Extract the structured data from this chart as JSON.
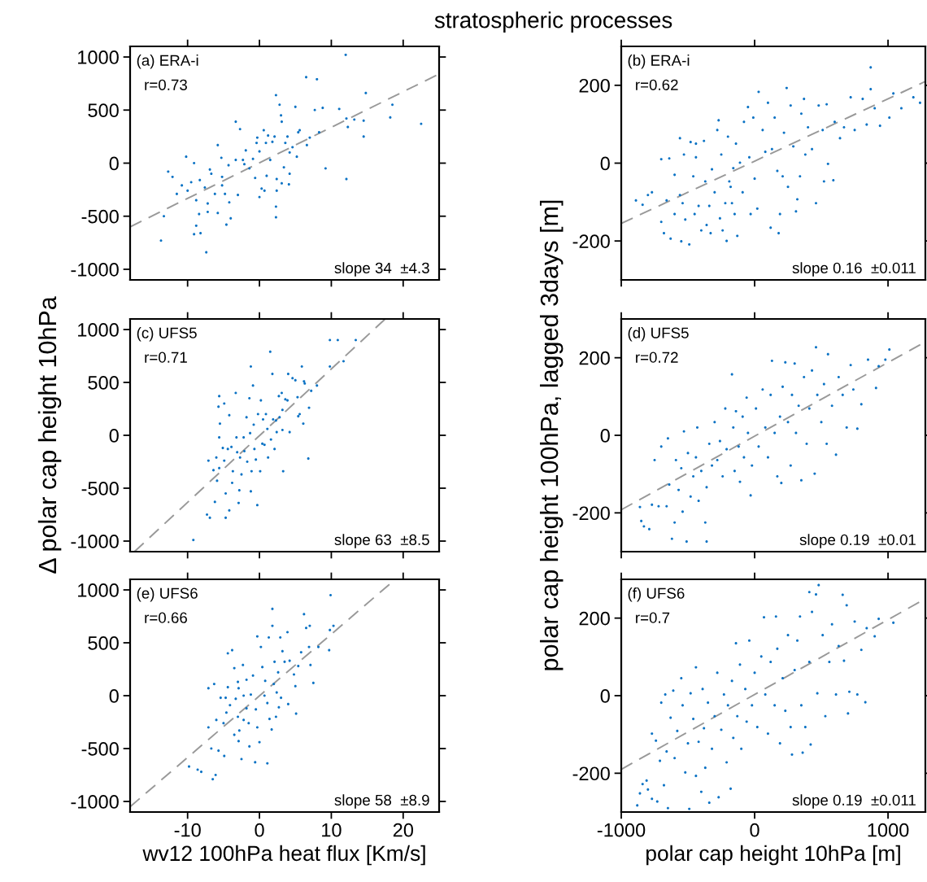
{
  "chart_data": [
    {
      "type": "scatter",
      "title": "stratospheric processes",
      "xlim": [
        -18,
        25
      ],
      "ylim": [
        -1100,
        1100
      ],
      "xticks": [
        -10,
        0,
        10,
        20
      ],
      "yticks": [
        -1000,
        -500,
        0,
        500,
        1000
      ],
      "tick_labels": "y",
      "annotations": [
        "(a) ERA-i",
        "r=0.73",
        "slope 34  ±4.3"
      ],
      "series": [
        {
          "type": "scatter",
          "color": "#0a72c4",
          "marker": "circle",
          "x": [
            -13.7,
            -13.3,
            -12.7,
            -12.1,
            -11.5,
            -10.8,
            -10.2,
            -10.0,
            -9.5,
            -9.1,
            -9.1,
            -8.8,
            -8.8,
            -8.4,
            -8.3,
            -8.2,
            -7.6,
            -7.4,
            -7.2,
            -7.2,
            -6.9,
            -6.7,
            -6.2,
            -5.8,
            -5.8,
            -5.3,
            -5.2,
            -5.2,
            -4.8,
            -4.6,
            -4.3,
            -4.2,
            -4.0,
            -3.3,
            -3.3,
            -3.0,
            -2.7,
            -2.3,
            -2.1,
            -1.9,
            -1.4,
            -0.9,
            -0.6,
            -0.4,
            -0.3,
            0.0,
            0.0,
            0.3,
            0.6,
            0.7,
            0.9,
            1.0,
            1.2,
            1.5,
            1.8,
            2.1,
            2.3,
            2.4,
            2.3,
            2.3,
            2.4,
            2.8,
            3.0,
            3.1,
            3.1,
            3.4,
            3.6,
            3.9,
            4.1,
            4.2,
            4.2,
            4.6,
            5.0,
            5.2,
            5.4,
            5.6,
            6.5,
            6.6,
            7.0,
            7.7,
            8.0,
            8.3,
            8.8,
            9.2,
            11.1,
            12.0,
            12.1,
            12.1,
            12.3,
            13.2,
            14.5,
            14.5,
            14.8,
            18.2,
            18.5,
            22.5
          ],
          "values": [
            -730,
            -500,
            -80,
            -130,
            -290,
            -210,
            60,
            -260,
            -180,
            0,
            -670,
            -350,
            -590,
            -480,
            -160,
            -660,
            -230,
            -840,
            -380,
            -460,
            -60,
            -100,
            -290,
            170,
            -470,
            50,
            -130,
            -210,
            -290,
            -580,
            -20,
            -370,
            -520,
            390,
            30,
            -300,
            320,
            30,
            -10,
            120,
            -50,
            40,
            -140,
            190,
            240,
            -320,
            110,
            -240,
            310,
            -260,
            190,
            -120,
            260,
            30,
            200,
            250,
            640,
            -150,
            -410,
            -510,
            -260,
            550,
            450,
            390,
            -190,
            -40,
            190,
            250,
            -200,
            100,
            -100,
            150,
            530,
            60,
            290,
            310,
            810,
            170,
            240,
            500,
            790,
            290,
            520,
            -50,
            510,
            1020,
            420,
            -150,
            340,
            410,
            400,
            250,
            660,
            430,
            550,
            370
          ]
        },
        {
          "type": "line",
          "color": "#999999",
          "line_style": "dashed",
          "x": [
            -18,
            25
          ],
          "values": [
            -600,
            840
          ]
        }
      ]
    },
    {
      "type": "scatter",
      "xlim": [
        -1000,
        1280
      ],
      "ylim": [
        -300,
        300
      ],
      "xticks": [
        -1000,
        0,
        1000
      ],
      "yticks": [
        -200,
        0,
        200
      ],
      "tick_labels": "y",
      "annotations": [
        "(b) ERA-i",
        "r=0.62",
        "slope 0.16  ±0.011"
      ],
      "series": [
        {
          "type": "scatter",
          "color": "#0a72c4",
          "marker": "circle",
          "x": [
            -890,
            -840,
            -800,
            -770,
            -700,
            -700,
            -680,
            -660,
            -640,
            -630,
            -600,
            -600,
            -560,
            -560,
            -550,
            -540,
            -530,
            -520,
            -490,
            -480,
            -460,
            -450,
            -440,
            -440,
            -420,
            -400,
            -380,
            -370,
            -360,
            -340,
            -330,
            -320,
            -300,
            -280,
            -270,
            -260,
            -250,
            -240,
            -220,
            -210,
            -200,
            -190,
            -180,
            -170,
            -160,
            -150,
            -140,
            -130,
            -110,
            -90,
            -80,
            -50,
            -40,
            -30,
            -10,
            0,
            20,
            30,
            60,
            80,
            100,
            120,
            130,
            150,
            170,
            180,
            190,
            210,
            220,
            240,
            250,
            270,
            290,
            310,
            320,
            340,
            350,
            370,
            380,
            400,
            430,
            460,
            480,
            510,
            520,
            540,
            550,
            590,
            600,
            640,
            670,
            720,
            750,
            810,
            840,
            870,
            870,
            900,
            940,
            1010,
            1040,
            1100,
            1190,
            1240
          ],
          "values": [
            -96,
            -107,
            -82,
            -75,
            10,
            -151,
            -180,
            -96,
            12,
            -194,
            -30,
            -131,
            64,
            -82,
            -201,
            -103,
            22,
            -145,
            -209,
            54,
            -34,
            -131,
            15,
            50,
            -110,
            -173,
            57,
            -47,
            -159,
            -110,
            -180,
            -16,
            -75,
            85,
            110,
            -142,
            22,
            -173,
            -103,
            -200,
            68,
            -47,
            -61,
            -103,
            -13,
            -131,
            50,
            -187,
            1,
            -75,
            106,
            144,
            15,
            -131,
            117,
            -40,
            -117,
            183,
            85,
            29,
            155,
            -166,
            36,
            117,
            -20,
            -180,
            -131,
            -34,
            78,
            193,
            -61,
            148,
            43,
            -124,
            -93,
            -34,
            127,
            165,
            22,
            92,
            36,
            -103,
            148,
            85,
            -47,
            151,
            -2,
            -44,
            106,
            64,
            92,
            169,
            85,
            165,
            99,
            246,
            190,
            141,
            96,
            117,
            179,
            141,
            169,
            155
          ]
        },
        {
          "type": "line",
          "color": "#999999",
          "line_style": "dashed",
          "x": [
            -1000,
            1280
          ],
          "values": [
            -155,
            210
          ]
        }
      ]
    },
    {
      "type": "scatter",
      "ylabel": "Δ polar cap height 10hPa",
      "xlim": [
        -18,
        25
      ],
      "ylim": [
        -1100,
        1100
      ],
      "xticks": [
        -10,
        0,
        10,
        20
      ],
      "yticks": [
        -1000,
        -500,
        0,
        500,
        1000
      ],
      "tick_labels": "y",
      "annotations": [
        "(c) UFS5",
        "r=0.71",
        "slope 63  ±8.5"
      ],
      "series": [
        {
          "type": "scatter",
          "color": "#0a72c4",
          "marker": "circle",
          "x": [
            -9.2,
            -7.3,
            -6.9,
            -7.1,
            -6.4,
            -6.2,
            -6.0,
            -5.9,
            -5.7,
            -5.6,
            -5.5,
            -5.6,
            -5.6,
            -5.1,
            -4.9,
            -4.9,
            -4.7,
            -4.7,
            -4.4,
            -4.2,
            -4.2,
            -3.9,
            -3.8,
            -3.7,
            -3.3,
            -3.2,
            -3.1,
            -2.9,
            -2.8,
            -2.7,
            -2.5,
            -2.2,
            -2.1,
            -1.8,
            -1.7,
            -1.4,
            -1.3,
            -1.2,
            -1.2,
            -1.1,
            -0.9,
            -0.8,
            -0.7,
            -0.5,
            -0.3,
            -0.2,
            0.1,
            0.2,
            0.4,
            0.5,
            0.7,
            0.9,
            1.1,
            1.2,
            1.5,
            1.6,
            1.8,
            1.9,
            2.1,
            2.3,
            2.4,
            2.7,
            2.8,
            3.1,
            3.2,
            3.2,
            3.3,
            3.6,
            3.9,
            4.0,
            4.2,
            4.6,
            5.0,
            5.3,
            5.4,
            5.6,
            5.9,
            6.1,
            6.2,
            6.3,
            6.8,
            6.9,
            7.2,
            8.0,
            9.8,
            9.8,
            10.9,
            11.7,
            13.4
          ],
          "values": [
            -990,
            -750,
            -780,
            -240,
            -330,
            -630,
            -210,
            -430,
            270,
            370,
            110,
            -20,
            -310,
            -120,
            300,
            -240,
            -550,
            -780,
            -130,
            190,
            -710,
            -110,
            -450,
            -340,
            400,
            -20,
            -160,
            -640,
            -520,
            -210,
            -370,
            -20,
            -150,
            170,
            -250,
            350,
            20,
            650,
            -530,
            -340,
            470,
            100,
            -130,
            -230,
            -660,
            200,
            -340,
            330,
            -80,
            150,
            -90,
            200,
            60,
            -210,
            790,
            -40,
            580,
            150,
            -130,
            140,
            30,
            370,
            170,
            400,
            240,
            50,
            -340,
            340,
            330,
            580,
            30,
            540,
            520,
            360,
            180,
            200,
            650,
            110,
            510,
            490,
            -220,
            260,
            420,
            470,
            900,
            650,
            900,
            700,
            900
          ]
        },
        {
          "type": "line",
          "color": "#999999",
          "line_style": "dashed",
          "x": [
            -17.4,
            17.5
          ],
          "values": [
            -1100,
            1100
          ]
        }
      ]
    },
    {
      "type": "scatter",
      "ylabel": "polar cap height 100hPa, lagged 3days [m]",
      "xlim": [
        -1000,
        1280
      ],
      "ylim": [
        -300,
        300
      ],
      "xticks": [
        -1000,
        0,
        1000
      ],
      "yticks": [
        -200,
        0,
        200
      ],
      "tick_labels": "y",
      "annotations": [
        "(d) UFS5",
        "r=0.72",
        "slope 0.19  ±0.01"
      ],
      "series": [
        {
          "type": "scatter",
          "color": "#0a72c4",
          "marker": "circle",
          "x": [
            -860,
            -850,
            -830,
            -790,
            -770,
            -750,
            -720,
            -700,
            -660,
            -650,
            -640,
            -620,
            -600,
            -590,
            -570,
            -550,
            -540,
            -530,
            -510,
            -500,
            -480,
            -460,
            -440,
            -430,
            -420,
            -400,
            -370,
            -360,
            -360,
            -340,
            -320,
            -300,
            -280,
            -260,
            -240,
            -220,
            -210,
            -170,
            -160,
            -150,
            -140,
            -120,
            -110,
            -90,
            -80,
            -60,
            -50,
            -30,
            -20,
            10,
            30,
            60,
            80,
            100,
            120,
            130,
            150,
            170,
            190,
            200,
            210,
            230,
            250,
            270,
            280,
            300,
            310,
            330,
            350,
            370,
            390,
            410,
            430,
            450,
            460,
            470,
            500,
            520,
            540,
            550,
            580,
            610,
            630,
            660,
            690,
            720,
            740,
            770,
            800,
            850,
            910,
            930,
            980,
            1010
          ],
          "values": [
            -185,
            -221,
            -235,
            -242,
            -179,
            -64,
            -183,
            -29,
            -183,
            -8,
            -127,
            -267,
            -225,
            -64,
            -141,
            -85,
            -197,
            10,
            -274,
            -46,
            -158,
            -106,
            -57,
            20,
            -169,
            -92,
            -225,
            -274,
            -134,
            -22,
            -78,
            34,
            -64,
            -15,
            -106,
            69,
            -36,
            157,
            20,
            -92,
            62,
            -29,
            -120,
            48,
            -57,
            97,
            6,
            -155,
            -78,
            69,
            -29,
            118,
            20,
            -57,
            104,
            192,
            6,
            -106,
            48,
            -123,
            125,
            188,
            34,
            -78,
            104,
            185,
            6,
            76,
            -116,
            150,
            -22,
            69,
            167,
            -99,
            227,
            104,
            34,
            132,
            -22,
            209,
            76,
            -50,
            150,
            104,
            20,
            181,
            118,
            17,
            80,
            195,
            122,
            178,
            195,
            221
          ]
        },
        {
          "type": "line",
          "color": "#999999",
          "line_style": "dashed",
          "x": [
            -1000,
            1280
          ],
          "values": [
            -192,
            241
          ]
        }
      ]
    },
    {
      "type": "scatter",
      "xlabel": "wv12 100hPa heat flux [Km/s]",
      "xlim": [
        -18,
        25
      ],
      "ylim": [
        -1100,
        1100
      ],
      "xticks": [
        -10,
        0,
        10,
        20
      ],
      "yticks": [
        -1000,
        -500,
        0,
        500,
        1000
      ],
      "annotations": [
        "(e) UFS6",
        "r=0.66",
        "slope 58  ±8.9"
      ],
      "series": [
        {
          "type": "scatter",
          "color": "#0a72c4",
          "marker": "circle",
          "x": [
            -9.8,
            -8.6,
            -8.1,
            -7.1,
            -7.1,
            -6.7,
            -6.5,
            -6.3,
            -6.1,
            -6.0,
            -5.7,
            -5.4,
            -5.0,
            -4.9,
            -4.7,
            -4.6,
            -4.4,
            -4.4,
            -4.1,
            -3.8,
            -3.5,
            -3.5,
            -3.3,
            -3.0,
            -2.9,
            -3.0,
            -2.9,
            -2.8,
            -2.5,
            -2.3,
            -2.2,
            -2.2,
            -1.8,
            -1.8,
            -1.5,
            -1.4,
            -1.2,
            -0.9,
            -0.6,
            -0.5,
            -0.3,
            -0.3,
            0.0,
            0.2,
            0.4,
            0.7,
            0.8,
            1.1,
            1.1,
            1.3,
            1.4,
            1.7,
            1.8,
            1.8,
            2.0,
            2.1,
            2.3,
            2.4,
            2.6,
            2.7,
            2.9,
            3.0,
            3.2,
            3.5,
            3.9,
            4.0,
            4.2,
            4.8,
            5.0,
            5.1,
            5.4,
            5.8,
            6.2,
            6.5,
            6.9,
            7.0,
            7.1,
            7.5,
            8.2,
            9.7,
            9.8,
            9.9,
            10.3
          ],
          "values": [
            -670,
            -700,
            -720,
            70,
            -300,
            -500,
            -790,
            110,
            -750,
            -230,
            -520,
            -20,
            -260,
            -570,
            -20,
            -160,
            400,
            80,
            -90,
            430,
            260,
            -370,
            -30,
            130,
            70,
            -200,
            -430,
            -330,
            -600,
            290,
            0,
            -230,
            150,
            -120,
            -260,
            -480,
            10,
            190,
            -630,
            -130,
            560,
            -300,
            -440,
            460,
            270,
            0,
            140,
            -70,
            -640,
            550,
            -220,
            -320,
            820,
            660,
            110,
            320,
            -200,
            30,
            220,
            -110,
            550,
            -20,
            420,
            320,
            600,
            -80,
            330,
            200,
            90,
            -170,
            280,
            410,
            770,
            640,
            460,
            660,
            290,
            120,
            460,
            430,
            620,
            950,
            660
          ]
        },
        {
          "type": "line",
          "color": "#999999",
          "line_style": "dashed",
          "x": [
            -18,
            18.9
          ],
          "values": [
            -1050,
            1100
          ]
        }
      ]
    },
    {
      "type": "scatter",
      "xlabel": "polar cap height 10hPa [m]",
      "xlim": [
        -1000,
        1280
      ],
      "ylim": [
        -300,
        300
      ],
      "xticks": [
        -1000,
        0,
        1000
      ],
      "yticks": [
        -200,
        0,
        200
      ],
      "annotations": [
        "(f) UFS6",
        "r=0.7",
        "slope 0.19  ±0.011"
      ],
      "series": [
        {
          "type": "scatter",
          "color": "#0a72c4",
          "marker": "circle",
          "x": [
            -880,
            -860,
            -840,
            -810,
            -800,
            -770,
            -770,
            -740,
            -730,
            -710,
            -700,
            -680,
            -670,
            -660,
            -650,
            -630,
            -610,
            -600,
            -580,
            -550,
            -540,
            -520,
            -500,
            -490,
            -480,
            -460,
            -440,
            -440,
            -420,
            -400,
            -390,
            -380,
            -370,
            -350,
            -340,
            -320,
            -300,
            -280,
            -270,
            -250,
            -230,
            -210,
            -200,
            -180,
            -170,
            -160,
            -140,
            -130,
            -110,
            -100,
            -70,
            -60,
            -40,
            -20,
            0,
            20,
            50,
            70,
            80,
            100,
            120,
            150,
            160,
            170,
            190,
            210,
            230,
            250,
            270,
            280,
            300,
            320,
            340,
            350,
            360,
            380,
            410,
            410,
            420,
            430,
            460,
            470,
            480,
            510,
            530,
            560,
            580,
            610,
            630,
            660,
            670,
            690,
            700,
            710,
            750,
            770,
            800,
            830,
            840,
            900,
            930,
            1040
          ],
          "values": [
            -283,
            -252,
            -228,
            -219,
            -242,
            -98,
            -266,
            -116,
            -273,
            -168,
            -18,
            -231,
            3,
            -144,
            -290,
            -57,
            13,
            -161,
            -91,
            45,
            -25,
            -198,
            -123,
            -292,
            6,
            -60,
            73,
            -207,
            -119,
            -248,
            17,
            -84,
            -186,
            -18,
            -276,
            -137,
            -53,
            59,
            -262,
            -88,
            3,
            -172,
            -25,
            -240,
            38,
            -109,
            135,
            -53,
            80,
            -137,
            17,
            -67,
            142,
            -25,
            59,
            -81,
            101,
            202,
            3,
            -98,
            87,
            -25,
            204,
            121,
            -123,
            45,
            -39,
            156,
            -81,
            -152,
            66,
            142,
            204,
            -25,
            -147,
            -81,
            267,
            87,
            -126,
            216,
            261,
            6,
            285,
            156,
            -53,
            87,
            184,
            3,
            128,
            260,
            90,
            233,
            -46,
            10,
            191,
            3,
            118,
            -17,
            174,
            153,
            198,
            188
          ]
        },
        {
          "type": "line",
          "color": "#999999",
          "line_style": "dashed",
          "x": [
            -1000,
            1280
          ],
          "values": [
            -190,
            250
          ]
        }
      ]
    }
  ]
}
